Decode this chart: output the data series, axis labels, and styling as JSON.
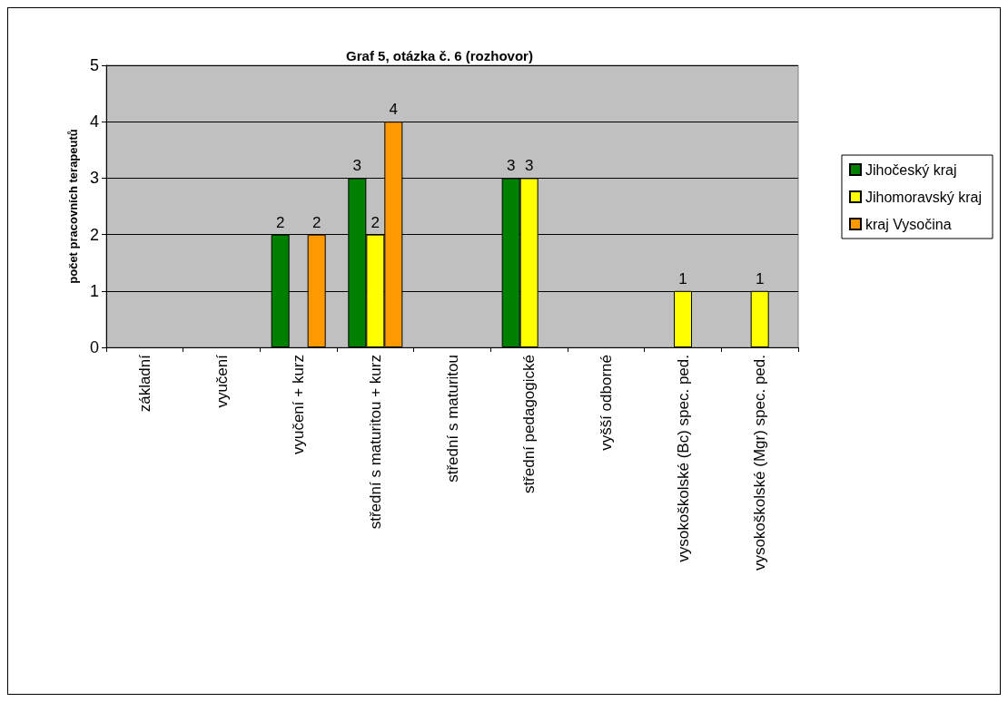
{
  "chart_data": {
    "type": "bar",
    "title": "Graf 5, otázka č. 6 (rozhovor)",
    "ylabel": "počet pracovních terapeutů",
    "categories": [
      "základní",
      "vyučení",
      "vyučení + kurz",
      "střední s maturitou + kurz",
      "střední s maturitou",
      "střední pedagogické",
      "vyšší odborné",
      "vysokoškolské (Bc) spec. ped.",
      "vysokoškolské (Mgr) spec. ped."
    ],
    "series": [
      {
        "name": "Jihočeský kraj",
        "color": "#008000",
        "values": [
          0,
          0,
          2,
          3,
          0,
          3,
          0,
          0,
          0
        ],
        "value_labels": [
          null,
          null,
          "2",
          "3",
          null,
          "3",
          null,
          null,
          null
        ]
      },
      {
        "name": "Jihomoravský kraj",
        "color": "#ffff00",
        "values": [
          0,
          0,
          0,
          2,
          0,
          3,
          0,
          1,
          1
        ],
        "value_labels": [
          null,
          null,
          null,
          "2",
          null,
          "3",
          null,
          "1",
          "1"
        ]
      },
      {
        "name": "kraj Vysočina",
        "color": "#ff9900",
        "values": [
          0,
          0,
          2,
          4,
          0,
          0,
          0,
          0,
          0
        ],
        "value_labels": [
          null,
          null,
          "2",
          "4",
          null,
          null,
          null,
          null,
          null
        ]
      }
    ],
    "ylim": [
      0,
      5
    ],
    "yticks": [
      0,
      1,
      2,
      3,
      4,
      5
    ],
    "grid": "y",
    "legend": "right"
  }
}
